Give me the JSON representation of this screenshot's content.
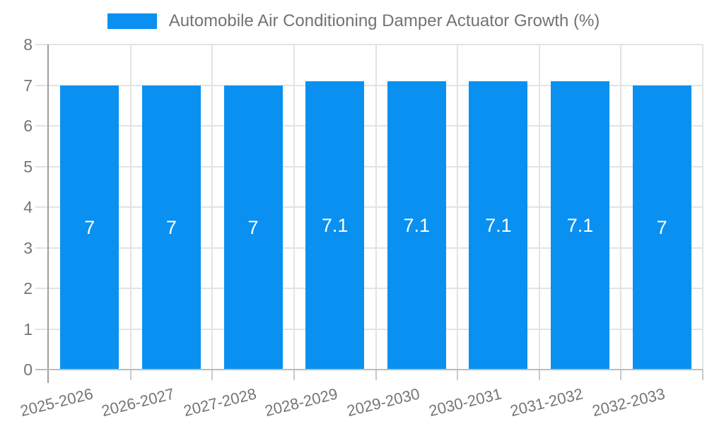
{
  "chart_data": {
    "type": "bar",
    "title": "Automobile Air Conditioning Damper Actuator Growth (%)",
    "legend": {
      "position": "top",
      "entries": [
        "Automobile Air Conditioning Damper Actuator Growth (%)"
      ]
    },
    "categories": [
      "2025-2026",
      "2026-2027",
      "2027-2028",
      "2028-2029",
      "2029-2030",
      "2030-2031",
      "2031-2032",
      "2032-2033"
    ],
    "values": [
      7,
      7,
      7,
      7.1,
      7.1,
      7.1,
      7.1,
      7
    ],
    "bar_value_labels": [
      "7",
      "7",
      "7",
      "7.1",
      "7.1",
      "7.1",
      "7.1",
      "7"
    ],
    "xlabel": "",
    "ylabel": "",
    "ylim": [
      0,
      8
    ],
    "yticks": [
      0,
      1,
      2,
      3,
      4,
      5,
      6,
      7,
      8
    ],
    "grid": true,
    "x_tick_label_rotation_deg": -14,
    "colors": {
      "bar": "#0A90F1",
      "grid": "#E3E3E3",
      "y_axis_line": "#9E9E9E",
      "x_axis_line": "#BDBDBD",
      "tick_mark": "#C9C9C9",
      "tick_text": "#757575",
      "title_text": "#737373",
      "value_label_text": "#FFFFFF",
      "background": "#FFFFFF"
    }
  }
}
